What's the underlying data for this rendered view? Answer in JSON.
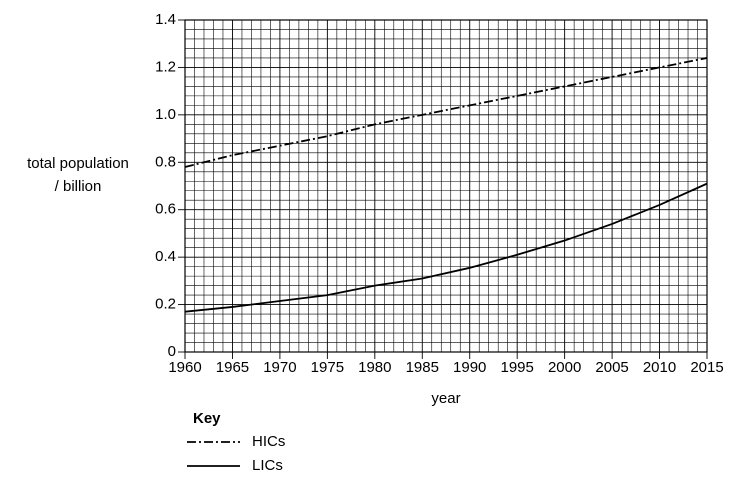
{
  "chart_data": {
    "type": "line",
    "y_label": [
      "total population",
      "/ billion"
    ],
    "x_label": "year",
    "x": [
      1960,
      1965,
      1970,
      1975,
      1980,
      1985,
      1990,
      1995,
      2000,
      2005,
      2010,
      2015
    ],
    "series": [
      {
        "name": "HICs",
        "color": "#000000",
        "dash": "dashdot",
        "values": [
          0.78,
          0.83,
          0.87,
          0.91,
          0.96,
          1.0,
          1.04,
          1.08,
          1.12,
          1.16,
          1.2,
          1.24
        ]
      },
      {
        "name": "LICs",
        "color": "#000000",
        "dash": "solid",
        "values": [
          0.17,
          0.19,
          0.215,
          0.24,
          0.28,
          0.31,
          0.355,
          0.41,
          0.47,
          0.54,
          0.62,
          0.71
        ]
      }
    ],
    "legend_title": "Key",
    "legend_position": "bottom-left",
    "xlim": [
      1960,
      2015
    ],
    "xticks": [
      1960,
      1965,
      1970,
      1975,
      1980,
      1985,
      1990,
      1995,
      2000,
      2005,
      2010,
      2015
    ],
    "ylim": [
      0,
      1.4
    ],
    "yticks": [
      0,
      0.2,
      0.4,
      0.6,
      0.8,
      {
        "value": 1,
        "label": "1.0"
      },
      1.2,
      1.4
    ],
    "grid": true
  }
}
